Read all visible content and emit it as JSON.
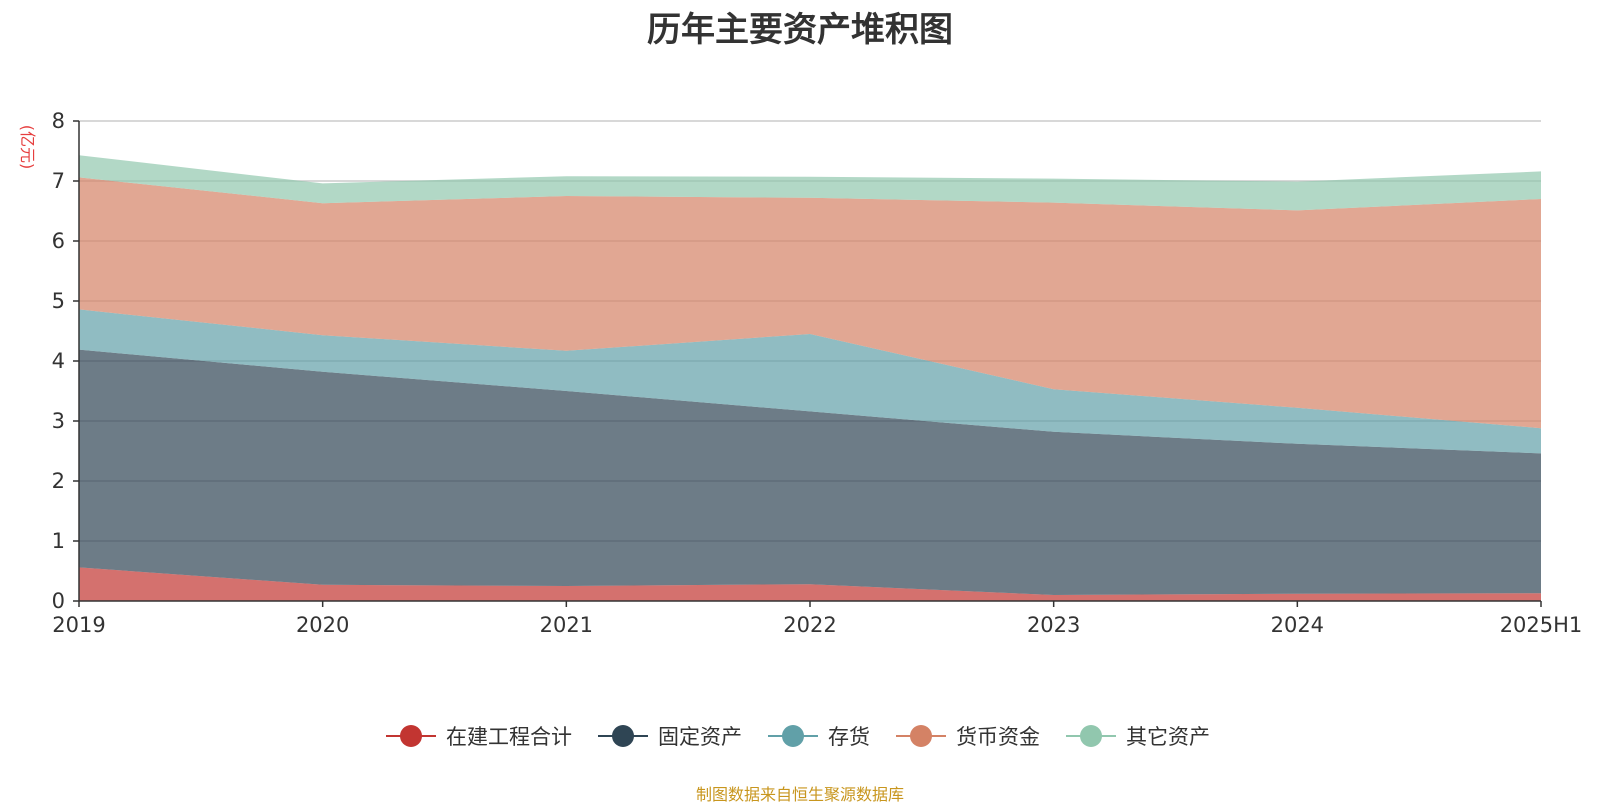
{
  "chart_data": {
    "type": "area",
    "stacked": true,
    "title": "历年主要资产堆积图",
    "ylabel": "(亿元)",
    "ylim": [
      0,
      8
    ],
    "yticks": [
      0,
      1,
      2,
      3,
      4,
      5,
      6,
      7,
      8
    ],
    "grid": true,
    "legend_position": "bottom",
    "categories": [
      "2019",
      "2020",
      "2021",
      "2022",
      "2023",
      "2024",
      "2025H1"
    ],
    "series": [
      {
        "name": "在建工程合计",
        "color": "#c23531",
        "values": [
          0.56,
          0.27,
          0.25,
          0.28,
          0.1,
          0.12,
          0.13
        ]
      },
      {
        "name": "固定资产",
        "color": "#2f4554",
        "values": [
          3.63,
          3.55,
          3.25,
          2.88,
          2.72,
          2.5,
          2.33
        ]
      },
      {
        "name": "存货",
        "color": "#61a0a8",
        "values": [
          0.67,
          0.61,
          0.67,
          1.29,
          0.71,
          0.6,
          0.42
        ]
      },
      {
        "name": "货币资金",
        "color": "#d48265",
        "values": [
          2.2,
          2.2,
          2.58,
          2.27,
          3.11,
          3.29,
          3.82
        ]
      },
      {
        "name": "其它资产",
        "color": "#91c7ae",
        "values": [
          0.37,
          0.33,
          0.33,
          0.35,
          0.4,
          0.48,
          0.46
        ]
      }
    ]
  },
  "source_note": "制图数据来自恒生聚源数据库",
  "colors": {
    "title": "#333333",
    "unit": "#e63f3f",
    "source_note": "#c8961e",
    "grid": "#cccccc",
    "axis": "#333333"
  }
}
